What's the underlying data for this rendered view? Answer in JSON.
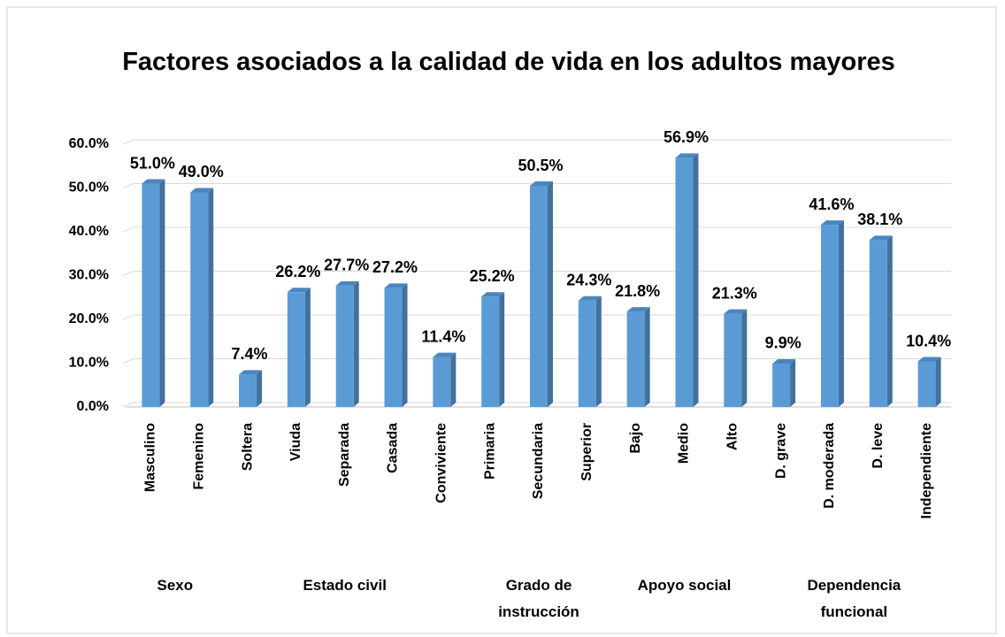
{
  "chart_data": {
    "type": "bar",
    "title": "Factores asociados a la calidad de vida en los adultos mayores",
    "color": "#5b9bd5",
    "grid": true,
    "ylim": [
      0,
      60
    ],
    "yticks": [
      {
        "value": 0,
        "label": "0.0%"
      },
      {
        "value": 10,
        "label": "10.0%"
      },
      {
        "value": 20,
        "label": "20.0%"
      },
      {
        "value": 30,
        "label": "30.0%"
      },
      {
        "value": 40,
        "label": "40.0%"
      },
      {
        "value": 50,
        "label": "50.0%"
      },
      {
        "value": 60,
        "label": "60.0%"
      }
    ],
    "groups": [
      {
        "name": "Sexo",
        "categories": [
          "Masculino",
          "Femenino"
        ],
        "values": [
          51.0,
          49.0
        ],
        "value_labels": [
          "51.0%",
          "49.0%"
        ]
      },
      {
        "name": "Estado civil",
        "categories": [
          "Soltera",
          "Viuda",
          "Separada",
          "Casada",
          "Conviviente"
        ],
        "values": [
          7.4,
          26.2,
          27.7,
          27.2,
          11.4
        ],
        "value_labels": [
          "7.4%",
          "26.2%",
          "27.7%",
          "27.2%",
          "11.4%"
        ]
      },
      {
        "name": "Grado de instrucción",
        "categories": [
          "Primaria",
          "Secundaria",
          "Superior"
        ],
        "values": [
          25.2,
          50.5,
          24.3
        ],
        "value_labels": [
          "25.2%",
          "50.5%",
          "24.3%"
        ]
      },
      {
        "name": "Apoyo social",
        "categories": [
          "Bajo",
          "Medio",
          "Alto"
        ],
        "values": [
          21.8,
          56.9,
          21.3
        ],
        "value_labels": [
          "21.8%",
          "56.9%",
          "21.3%"
        ]
      },
      {
        "name": "Dependencia funcional",
        "categories": [
          "D. grave",
          "D. moderada",
          "D. leve",
          "Independiente"
        ],
        "values": [
          9.9,
          41.6,
          38.1,
          10.4
        ],
        "value_labels": [
          "9.9%",
          "41.6%",
          "38.1%",
          "10.4%"
        ]
      }
    ]
  }
}
